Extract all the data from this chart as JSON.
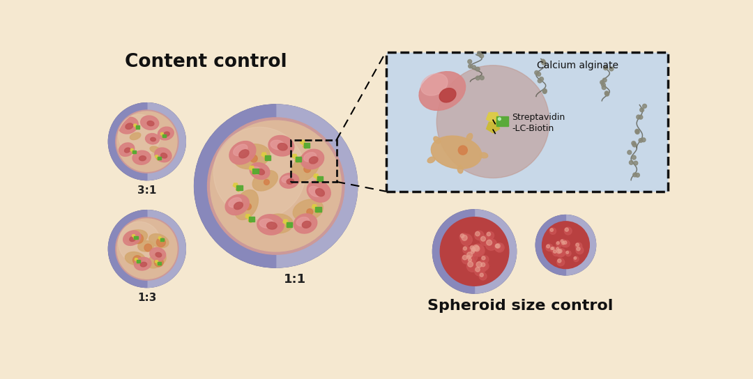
{
  "bg_color": "#f5e8d0",
  "title_content": "Content control",
  "title_spheroid": "Spheroid size control",
  "label_31": "3:1",
  "label_13": "1:3",
  "label_11": "1:1",
  "label_ca": "Calcium alginate",
  "label_strep": "Streptavidin\n-LC-Biotin",
  "ring_left": "#8888bb",
  "ring_right": "#aaaacc",
  "ring_dark": "#666688",
  "ring_thin_inner": "#cc9999",
  "inner_bg": "#ddb89a",
  "inner_light": "#e8cbb0",
  "cell_pink_outer": "#d98080",
  "cell_pink_inner": "#c05555",
  "cell_tan": "#d4a870",
  "cell_tan2": "#c9a060",
  "cell_orange_dot": "#d4804a",
  "green_biotin": "#55aa33",
  "yellow_pent": "#ddcc44",
  "inset_bg": "#c8d8e8",
  "inset_border": "#111111",
  "spheroid_base": "#b84040",
  "spheroid_mid": "#cc5555",
  "spheroid_hi": "#e08080",
  "chain_dot": "#888878",
  "chain_line": "#555548"
}
